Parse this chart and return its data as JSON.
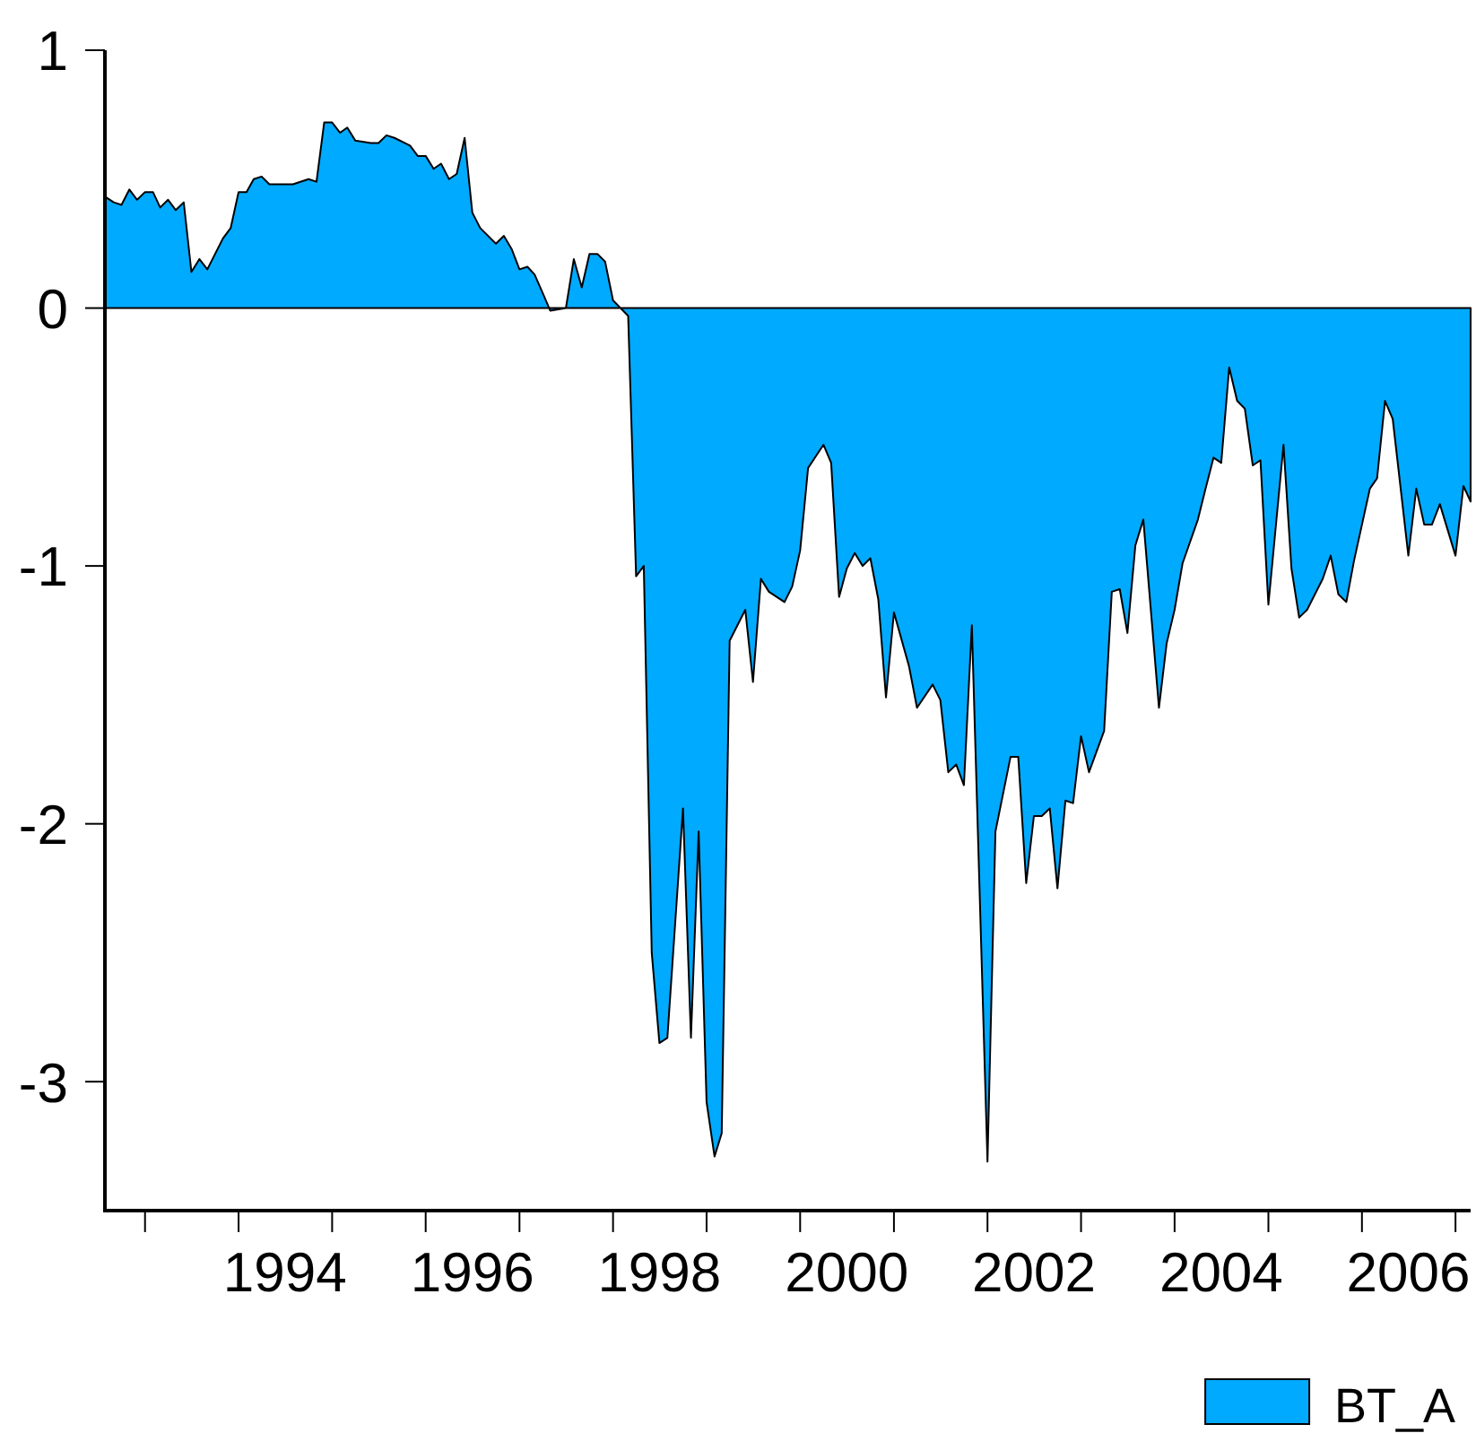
{
  "chart_data": {
    "type": "area",
    "x": [
      "1992-08",
      "1992-09",
      "1992-10",
      "1992-11",
      "1992-12",
      "1993-01",
      "1993-02",
      "1993-03",
      "1993-04",
      "1993-05",
      "1993-06",
      "1993-07",
      "1993-08",
      "1993-09",
      "1993-11",
      "1993-12",
      "1994-01",
      "1994-02",
      "1994-03",
      "1994-04",
      "1994-05",
      "1994-06",
      "1994-08",
      "1994-10",
      "1994-11",
      "1994-12",
      "1995-01",
      "1995-02",
      "1995-03",
      "1995-04",
      "1995-06",
      "1995-07",
      "1995-08",
      "1995-09",
      "1995-11",
      "1995-12",
      "1996-01",
      "1996-02",
      "1996-03",
      "1996-04",
      "1996-05",
      "1996-06",
      "1996-07",
      "1996-08",
      "1996-10",
      "1996-11",
      "1996-12",
      "1997-01",
      "1997-02",
      "1997-03",
      "1997-04",
      "1997-05",
      "1997-07",
      "1997-08",
      "1997-09",
      "1997-10",
      "1997-11",
      "1997-12",
      "1998-01",
      "1998-03",
      "1998-04",
      "1998-05",
      "1998-06",
      "1998-07",
      "1998-08",
      "1998-10",
      "1998-11",
      "1998-12",
      "1999-01",
      "1999-02",
      "1999-03",
      "1999-04",
      "1999-06",
      "1999-07",
      "1999-08",
      "1999-09",
      "1999-11",
      "1999-12",
      "2000-01",
      "2000-02",
      "2000-04",
      "2000-05",
      "2000-06",
      "2000-07",
      "2000-08",
      "2000-09",
      "2000-10",
      "2000-11",
      "2000-12",
      "2001-01",
      "2001-03",
      "2001-04",
      "2001-06",
      "2001-07",
      "2001-08",
      "2001-09",
      "2001-10",
      "2001-11",
      "2002-01",
      "2002-02",
      "2002-04",
      "2002-05",
      "2002-06",
      "2002-07",
      "2002-08",
      "2002-09",
      "2002-10",
      "2002-11",
      "2002-12",
      "2003-01",
      "2003-02",
      "2003-04",
      "2003-05",
      "2003-06",
      "2003-07",
      "2003-08",
      "2003-09",
      "2003-11",
      "2003-12",
      "2004-01",
      "2004-02",
      "2004-04",
      "2004-05",
      "2004-06",
      "2004-07",
      "2004-08",
      "2004-09",
      "2004-10",
      "2004-11",
      "2004-12",
      "2005-01",
      "2005-03",
      "2005-04",
      "2005-05",
      "2005-06",
      "2005-08",
      "2005-09",
      "2005-10",
      "2005-11",
      "2005-12",
      "2006-02",
      "2006-03",
      "2006-04",
      "2006-05",
      "2006-07",
      "2006-08",
      "2006-09",
      "2006-10",
      "2006-11",
      "2007-01",
      "2007-02",
      "2007-03"
    ],
    "series": [
      {
        "name": "BT_A",
        "color": "#00aaff",
        "values": [
          0.43,
          0.41,
          0.4,
          0.46,
          0.42,
          0.45,
          0.45,
          0.39,
          0.42,
          0.38,
          0.41,
          0.14,
          0.19,
          0.15,
          0.27,
          0.31,
          0.45,
          0.45,
          0.5,
          0.51,
          0.48,
          0.48,
          0.48,
          0.5,
          0.49,
          0.72,
          0.72,
          0.68,
          0.7,
          0.65,
          0.64,
          0.64,
          0.67,
          0.66,
          0.63,
          0.59,
          0.59,
          0.54,
          0.56,
          0.5,
          0.52,
          0.66,
          0.37,
          0.31,
          0.25,
          0.28,
          0.23,
          0.15,
          0.16,
          0.13,
          0.06,
          -0.01,
          0.0,
          0.19,
          0.08,
          0.21,
          0.21,
          0.18,
          0.03,
          -0.03,
          -1.04,
          -1.0,
          -2.5,
          -2.85,
          -2.83,
          -1.94,
          -2.83,
          -2.03,
          -3.08,
          -3.29,
          -3.2,
          -1.29,
          -1.17,
          -1.45,
          -1.05,
          -1.1,
          -1.14,
          -1.08,
          -0.94,
          -0.62,
          -0.53,
          -0.6,
          -1.12,
          -1.01,
          -0.95,
          -1.0,
          -0.97,
          -1.13,
          -1.51,
          -1.18,
          -1.39,
          -1.55,
          -1.46,
          -1.52,
          -1.8,
          -1.77,
          -1.85,
          -1.23,
          -3.31,
          -2.03,
          -1.74,
          -1.74,
          -2.23,
          -1.97,
          -1.97,
          -1.94,
          -2.25,
          -1.91,
          -1.92,
          -1.66,
          -1.8,
          -1.64,
          -1.1,
          -1.09,
          -1.26,
          -0.92,
          -0.82,
          -1.55,
          -1.3,
          -1.17,
          -0.99,
          -0.82,
          -0.7,
          -0.58,
          -0.6,
          -0.23,
          -0.36,
          -0.39,
          -0.61,
          -0.59,
          -1.15,
          -0.53,
          -1.01,
          -1.2,
          -1.17,
          -1.05,
          -0.96,
          -1.11,
          -1.14,
          -0.98,
          -0.7,
          -0.66,
          -0.36,
          -0.43,
          -0.96,
          -0.7,
          -0.84,
          -0.84,
          -0.76,
          -0.96,
          -0.69,
          -0.75
        ]
      }
    ],
    "xlim": [
      "1992-08",
      "2007-03"
    ],
    "xticks": [
      {
        "value": "1993-01",
        "label": null
      },
      {
        "value": "1994-01",
        "label": null
      },
      {
        "value": "1994-07",
        "label": "1994"
      },
      {
        "value": "1995-01",
        "label": null
      },
      {
        "value": "1996-01",
        "label": null
      },
      {
        "value": "1996-07",
        "label": "1996"
      },
      {
        "value": "1997-01",
        "label": null
      },
      {
        "value": "1998-01",
        "label": null
      },
      {
        "value": "1998-07",
        "label": "1998"
      },
      {
        "value": "1999-01",
        "label": null
      },
      {
        "value": "2000-01",
        "label": null
      },
      {
        "value": "2000-07",
        "label": "2000"
      },
      {
        "value": "2001-01",
        "label": null
      },
      {
        "value": "2002-01",
        "label": null
      },
      {
        "value": "2002-07",
        "label": "2002"
      },
      {
        "value": "2003-01",
        "label": null
      },
      {
        "value": "2004-01",
        "label": null
      },
      {
        "value": "2004-07",
        "label": "2004"
      },
      {
        "value": "2005-01",
        "label": null
      },
      {
        "value": "2006-01",
        "label": null
      },
      {
        "value": "2006-07",
        "label": "2006"
      },
      {
        "value": "2007-01",
        "label": null
      }
    ],
    "ylim": [
      -3.5,
      1
    ],
    "yticks": [
      -3,
      -2,
      -1,
      0,
      1
    ],
    "legend": "bottom right"
  }
}
